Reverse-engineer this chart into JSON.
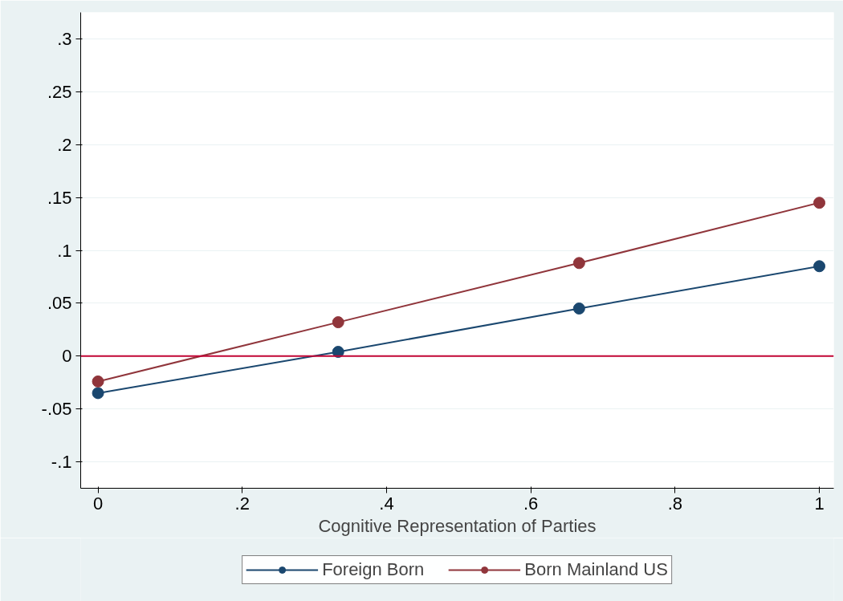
{
  "chart_data": {
    "type": "line",
    "xlabel": "Cognitive Representation of Parties",
    "x": [
      0,
      0.333,
      0.667,
      1
    ],
    "series": [
      {
        "name": "Foreign Born",
        "color": "#1a476f",
        "values": [
          -0.035,
          0.004,
          0.045,
          0.085
        ]
      },
      {
        "name": "Born Mainland US",
        "color": "#90353b",
        "values": [
          -0.024,
          0.032,
          0.088,
          0.145
        ]
      }
    ],
    "xlim": [
      -0.024,
      1.02
    ],
    "ylim": [
      -0.125,
      0.325
    ],
    "xticks": [
      0,
      {
        "value": 0.2,
        "label": ".2"
      },
      {
        "value": 0.4,
        "label": ".4"
      },
      {
        "value": 0.6,
        "label": ".6"
      },
      {
        "value": 0.8,
        "label": ".8"
      },
      1
    ],
    "yticks": [
      {
        "value": -0.1,
        "label": "-.1"
      },
      {
        "value": -0.05,
        "label": "-.05"
      },
      0,
      {
        "value": 0.05,
        "label": ".05"
      },
      {
        "value": 0.1,
        "label": ".1"
      },
      {
        "value": 0.15,
        "label": ".15"
      },
      {
        "value": 0.2,
        "label": ".2"
      },
      {
        "value": 0.25,
        "label": ".25"
      },
      {
        "value": 0.3,
        "label": ".3"
      }
    ],
    "ref_lines": [
      {
        "axis": "y",
        "value": 0,
        "color": "#c10534"
      }
    ],
    "grid": "y",
    "legend": "bottom",
    "marker": "circle",
    "line_style": "solid"
  }
}
